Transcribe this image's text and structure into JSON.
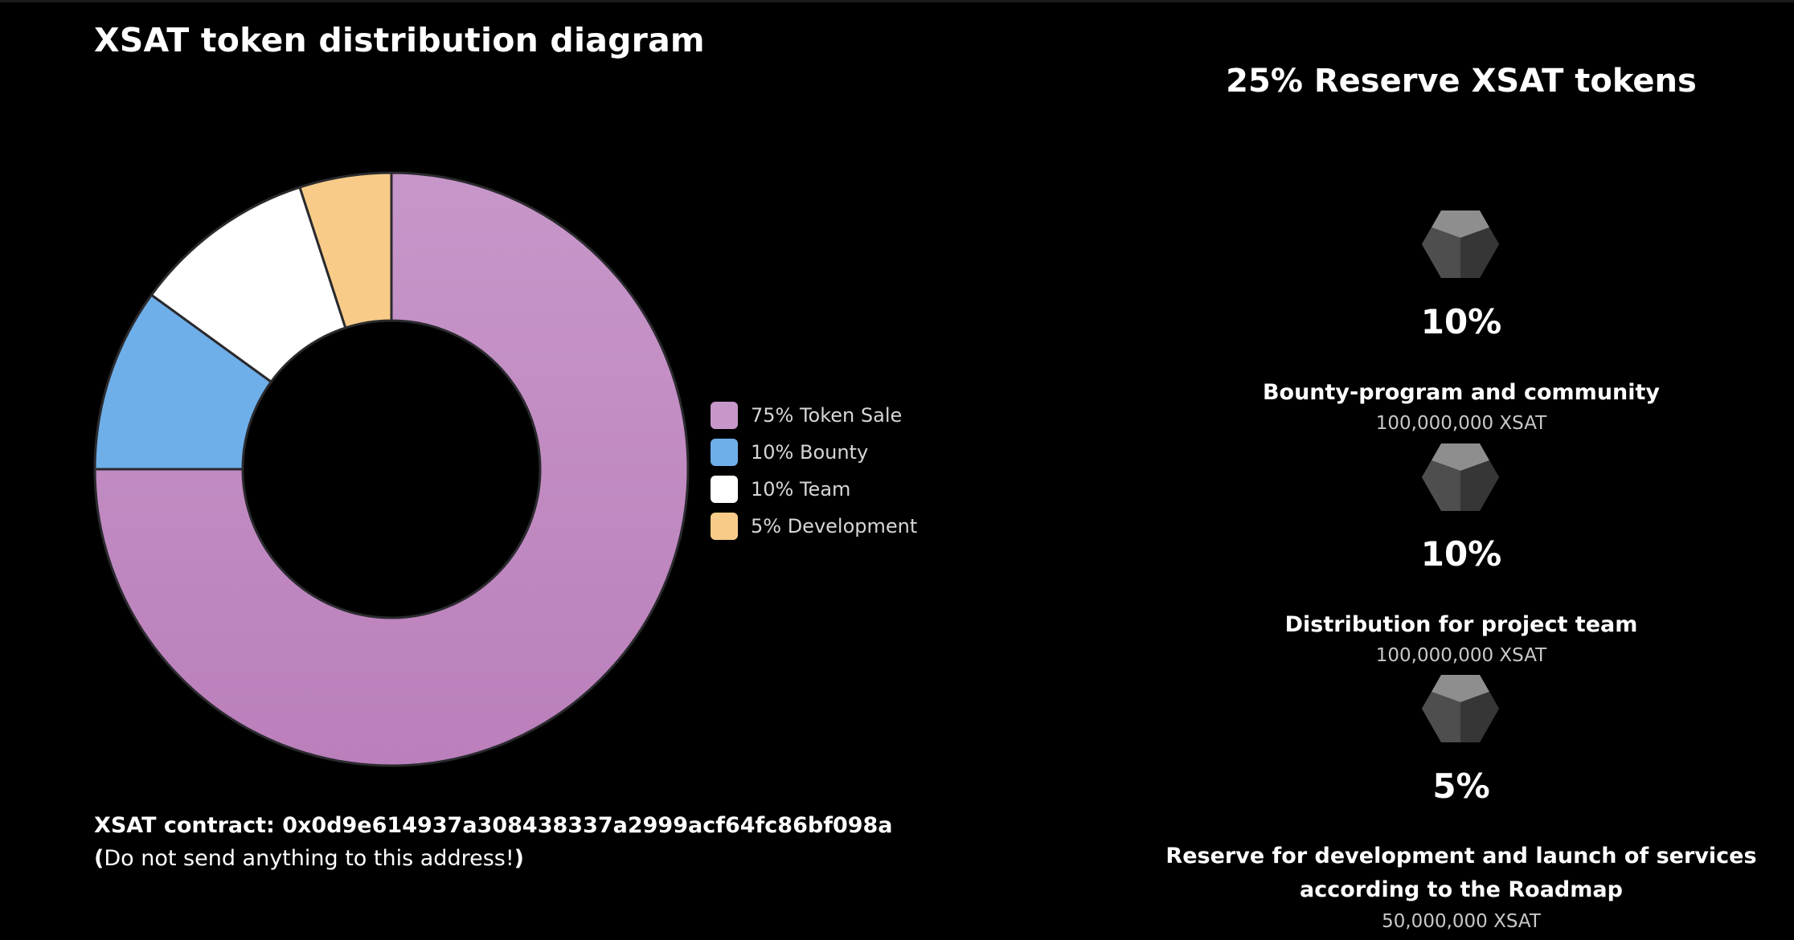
{
  "title": "XSAT token distribution diagram",
  "chart_data": {
    "type": "pie",
    "variant": "donut",
    "categories": [
      "Token Sale",
      "Bounty",
      "Team",
      "Development"
    ],
    "values": [
      75,
      10,
      10,
      5
    ],
    "colors_top": [
      "#c797c9",
      "#6eafe9",
      "#ffffff",
      "#f8cc88"
    ],
    "colors_bottom": [
      "#bb7fbb",
      "#6eafe9",
      "#ffffff",
      "#f8cc88"
    ],
    "legend": [
      "75% Token Sale",
      "10% Bounty",
      "10% Team",
      "5% Development"
    ],
    "legend_position": "right"
  },
  "contract": {
    "line": "XSAT contract: 0x0d9e614937a308438337a2999acf64fc86bf098a",
    "warning_open": "(",
    "warning_text": "Do not send anything to this address!",
    "warning_close": ")"
  },
  "reserve": {
    "title": "25% Reserve XSAT tokens",
    "items": [
      {
        "percent": "10%",
        "description": "Bounty-program and community",
        "amount": "100,000,000 XSAT"
      },
      {
        "percent": "10%",
        "description": "Distribution for project team",
        "amount": "100,000,000 XSAT"
      },
      {
        "percent": "5%",
        "description_line1": "Reserve for development and launch of services",
        "description_line2": "according to the Roadmap",
        "amount": "50,000,000 XSAT"
      }
    ],
    "icon": "gem-icon"
  },
  "colors": {
    "background": "#000000",
    "text": "#ffffff",
    "muted_text": "#c8c8c8"
  }
}
